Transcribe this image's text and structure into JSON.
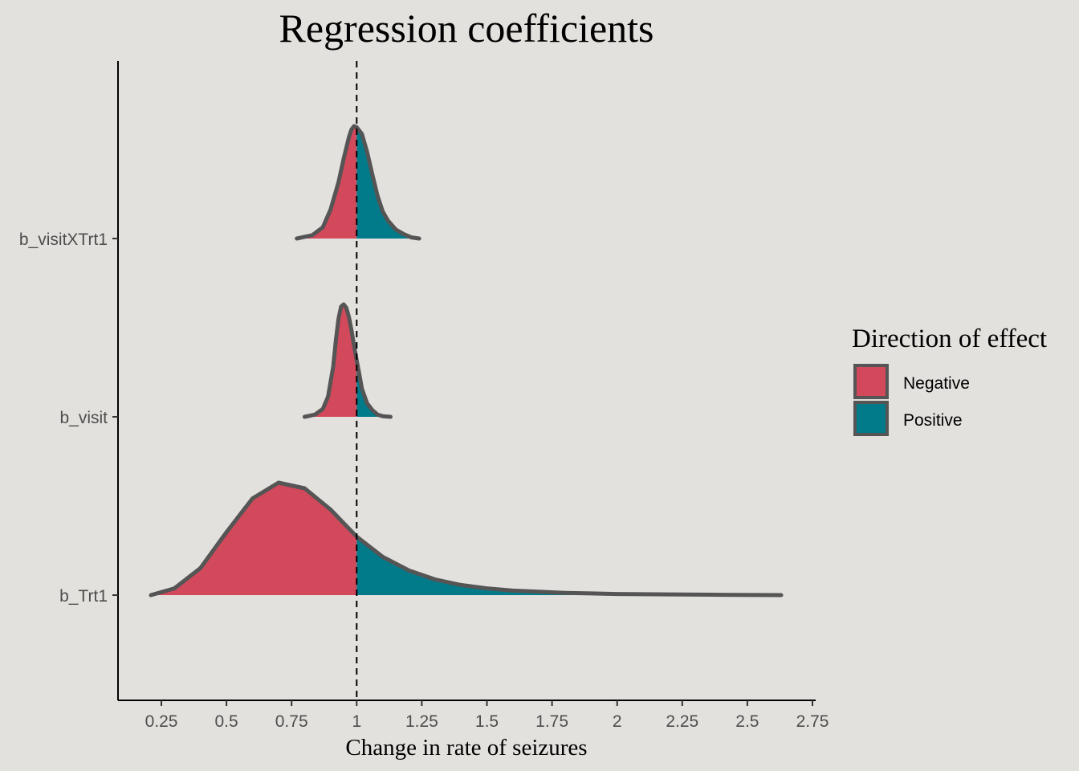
{
  "chart_data": {
    "type": "ridgeline-density",
    "title": "Regression coefficients",
    "xlabel": "Change in rate of seizures",
    "ylabel": "",
    "xlim": [
      0.1,
      2.8
    ],
    "x_ticks": [
      0.25,
      0.5,
      0.75,
      1,
      1.25,
      1.5,
      1.75,
      2,
      2.25,
      2.5,
      2.75
    ],
    "x_tick_labels": [
      "0.25",
      "0.5",
      "0.75",
      "1",
      "1.25",
      "1.5",
      "1.75",
      "2",
      "2.25",
      "2.5",
      "2.75"
    ],
    "reference_line_x": 1,
    "categories": [
      "b_visitXTrt1",
      "b_visit",
      "b_Trt1"
    ],
    "legend": {
      "title": "Direction of effect",
      "position": "right",
      "entries": [
        {
          "label": "Negative",
          "color": "#d2495b"
        },
        {
          "label": "Positive",
          "color": "#017a8a"
        }
      ]
    },
    "outline_color": "#555555",
    "grid": false,
    "series": [
      {
        "name": "b_visitXTrt1",
        "x": [
          0.77,
          0.83,
          0.87,
          0.9,
          0.93,
          0.95,
          0.97,
          0.98,
          0.99,
          1.0,
          1.02,
          1.04,
          1.06,
          1.08,
          1.1,
          1.12,
          1.15,
          1.18,
          1.21,
          1.24
        ],
        "density": [
          0.0,
          0.03,
          0.1,
          0.26,
          0.5,
          0.71,
          0.9,
          0.97,
          1.0,
          0.99,
          0.93,
          0.77,
          0.57,
          0.38,
          0.24,
          0.16,
          0.08,
          0.04,
          0.01,
          0.0
        ]
      },
      {
        "name": "b_visit",
        "x": [
          0.8,
          0.84,
          0.87,
          0.89,
          0.91,
          0.92,
          0.93,
          0.94,
          0.95,
          0.96,
          0.97,
          0.98,
          0.99,
          1.0,
          1.01,
          1.02,
          1.04,
          1.06,
          1.08,
          1.1,
          1.13
        ],
        "density": [
          0.0,
          0.02,
          0.07,
          0.18,
          0.45,
          0.68,
          0.87,
          0.98,
          1.0,
          0.97,
          0.89,
          0.77,
          0.63,
          0.5,
          0.38,
          0.25,
          0.12,
          0.06,
          0.02,
          0.005,
          0.0
        ]
      },
      {
        "name": "b_Trt1",
        "x": [
          0.21,
          0.3,
          0.4,
          0.5,
          0.6,
          0.7,
          0.8,
          0.9,
          1.0,
          1.1,
          1.2,
          1.3,
          1.4,
          1.5,
          1.6,
          1.7,
          1.8,
          1.9,
          2.0,
          2.2,
          2.4,
          2.63
        ],
        "density": [
          0.0,
          0.06,
          0.24,
          0.56,
          0.86,
          1.0,
          0.95,
          0.76,
          0.52,
          0.34,
          0.22,
          0.14,
          0.09,
          0.06,
          0.04,
          0.03,
          0.02,
          0.015,
          0.01,
          0.006,
          0.003,
          0.0
        ]
      }
    ]
  }
}
